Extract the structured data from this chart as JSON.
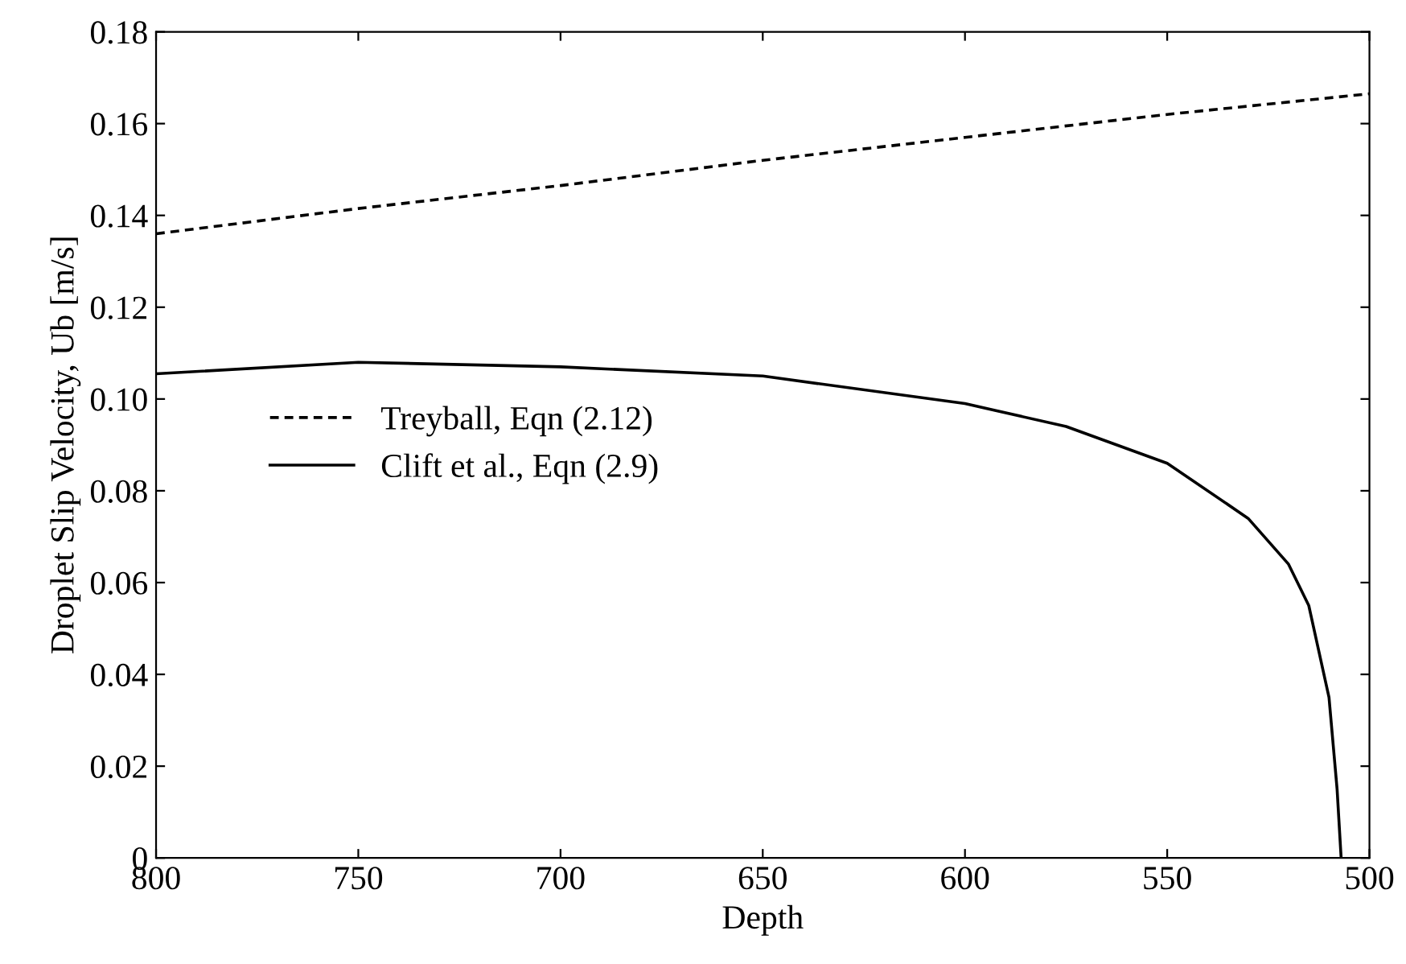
{
  "chart_data": {
    "type": "line",
    "xlabel": "Depth",
    "ylabel": "Droplet Slip Velocity, Ub [m/s]",
    "xlim": [
      800,
      500
    ],
    "xticks": [
      800,
      750,
      700,
      650,
      600,
      550,
      500
    ],
    "ylim": [
      0,
      0.18
    ],
    "yticks": [
      {
        "value": 0,
        "label": "0"
      },
      0.02,
      0.04,
      0.06,
      0.08,
      {
        "value": 0.1,
        "label": "0.10"
      },
      0.12,
      0.14,
      0.16,
      0.18
    ],
    "series": [
      {
        "name": "Treyball, Eqn (2.12)",
        "color": "#000000",
        "line_style": "dashed",
        "x": [
          800,
          750,
          700,
          650,
          600,
          550,
          500
        ],
        "values": [
          0.136,
          0.1415,
          0.1465,
          0.152,
          0.157,
          0.162,
          0.1665
        ]
      },
      {
        "name": "Clift et al., Eqn (2.9)",
        "color": "#000000",
        "line_style": "solid",
        "x": [
          800,
          750,
          700,
          650,
          600,
          575,
          550,
          530,
          520,
          515,
          510,
          508,
          507
        ],
        "values": [
          0.1055,
          0.108,
          0.107,
          0.105,
          0.099,
          0.094,
          0.086,
          0.074,
          0.064,
          0.055,
          0.035,
          0.015,
          0
        ]
      }
    ],
    "legend": "center left",
    "grid": false
  }
}
